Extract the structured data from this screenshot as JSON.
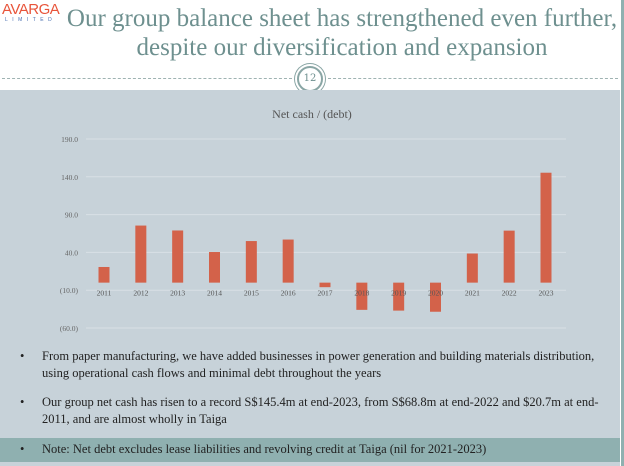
{
  "logo": {
    "name": "AVARGA",
    "sub": "LIMITED"
  },
  "title": "Our group balance sheet has strengthened even further, despite our diversification and expansion",
  "page_number": "12",
  "bullets": [
    "From paper manufacturing, we have added businesses in power generation and building materials distribution, using operational cash flows and minimal debt throughout the years",
    "Our group net cash has risen to a record S$145.4m at end-2023, from S$68.8m at end-2022 and $20.7m at end-2011, and are almost wholly in Taiga"
  ],
  "note": "Note: Net debt excludes lease liabilities and revolving credit at Taiga (nil for 2021-2023)",
  "bullet_char": "•",
  "colors": {
    "bar": "#d3624a",
    "background": "#c7d2d9",
    "title": "#6e908f",
    "note_band": "#8fb0b0"
  },
  "chart_data": {
    "type": "bar",
    "title": "Net cash / (debt)",
    "categories": [
      "2011",
      "2012",
      "2013",
      "2014",
      "2015",
      "2016",
      "2017",
      "2018",
      "2019",
      "2020",
      "2021",
      "2022",
      "2023"
    ],
    "values": [
      20.7,
      75.5,
      69.0,
      40.5,
      55.0,
      57.0,
      -6.0,
      -36.0,
      -37.0,
      -38.5,
      38.5,
      68.8,
      145.4
    ],
    "yticks": [
      190,
      140,
      90,
      40,
      -10,
      -60
    ],
    "ytick_labels": [
      "190.0",
      "140.0",
      "90.0",
      "40.0",
      "(10.0)",
      "(60.0)"
    ],
    "ylim": [
      -60,
      190
    ],
    "xlabel": "",
    "ylabel": "",
    "grid": true,
    "legend": "none"
  }
}
